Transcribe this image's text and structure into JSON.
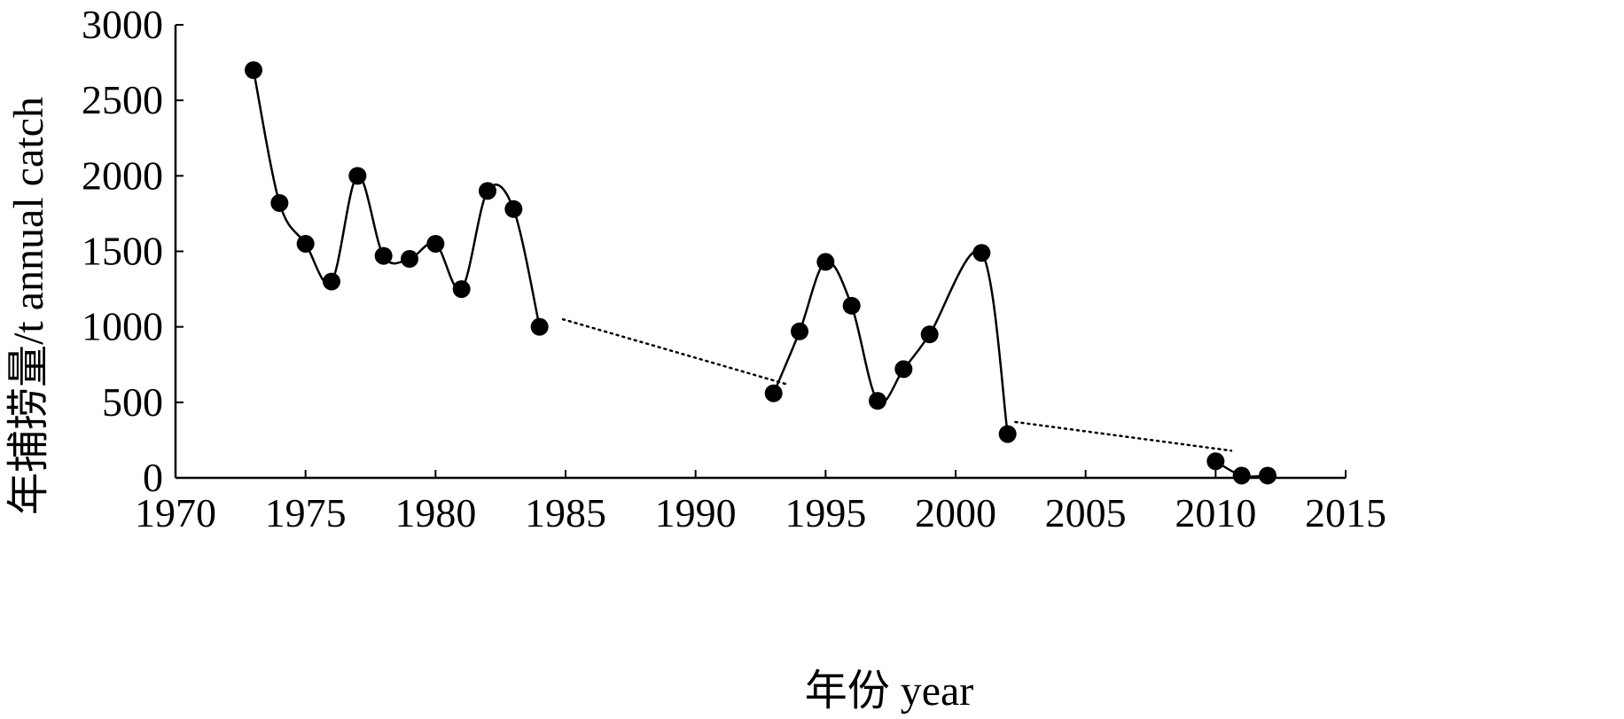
{
  "chart_data": {
    "type": "line",
    "xlabel": "年份 year",
    "ylabel": "年捕捞量/t annual catch",
    "xlim": [
      1970,
      2015
    ],
    "ylim": [
      0,
      3000
    ],
    "xticks": [
      1970,
      1975,
      1980,
      1985,
      1990,
      1995,
      2000,
      2005,
      2010,
      2015
    ],
    "yticks": [
      0,
      500,
      1000,
      1500,
      2000,
      2500,
      3000
    ],
    "grid": false,
    "legend": "none",
    "series": [
      {
        "points": [
          [
            1973,
            2700
          ],
          [
            1974,
            1820
          ],
          [
            1975,
            1550
          ],
          [
            1976,
            1300
          ],
          [
            1977,
            2000
          ],
          [
            1978,
            1470
          ],
          [
            1979,
            1450
          ],
          [
            1980,
            1550
          ],
          [
            1981,
            1250
          ],
          [
            1982,
            1900
          ],
          [
            1983,
            1780
          ],
          [
            1984,
            1000
          ],
          [
            1993,
            560
          ],
          [
            1994,
            970
          ],
          [
            1995,
            1430
          ],
          [
            1996,
            1140
          ],
          [
            1997,
            510
          ],
          [
            1998,
            720
          ],
          [
            1999,
            950
          ],
          [
            2001,
            1490
          ],
          [
            2002,
            290
          ],
          [
            2010,
            110
          ],
          [
            2011,
            15
          ],
          [
            2012,
            15
          ]
        ]
      }
    ],
    "segments": [
      [
        1973,
        1974,
        1975,
        1976,
        1977,
        1978,
        1979,
        1980,
        1981,
        1982,
        1983,
        1984
      ],
      [
        1993,
        1994,
        1995,
        1996,
        1997,
        1998,
        1999,
        2001,
        2002
      ],
      [
        2010,
        2011,
        2012
      ]
    ],
    "trend_lines": [
      {
        "from": [
          1984.9,
          1050
        ],
        "to": [
          1993.5,
          620
        ]
      },
      {
        "from": [
          2002.3,
          370
        ],
        "to": [
          2010.6,
          180
        ]
      }
    ],
    "colors": {
      "line": "#000000",
      "marker": "#000000",
      "axis": "#000000"
    }
  }
}
